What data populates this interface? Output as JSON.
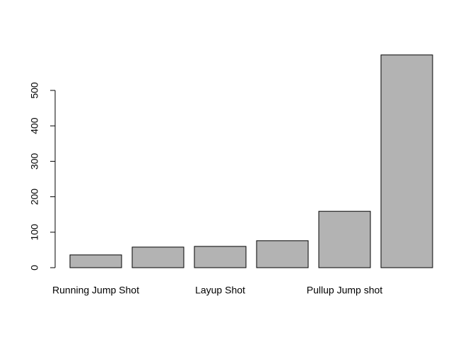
{
  "chart_data": {
    "type": "bar",
    "categories": [
      "Running Jump Shot",
      null,
      "Layup Shot",
      null,
      "Pullup Jump shot",
      null
    ],
    "values": [
      36,
      58,
      60,
      76,
      159,
      600
    ],
    "color": "#b3b3b3",
    "ylim": [
      0,
      630
    ],
    "yticks": [
      0,
      100,
      200,
      300,
      400,
      500
    ],
    "grid": false
  }
}
